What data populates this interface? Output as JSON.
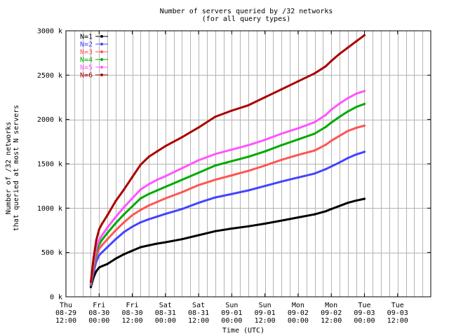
{
  "chart_data": {
    "type": "line",
    "title": "Number of servers queried by /32 networks",
    "subtitle": "(for all query types)",
    "xlabel": "Time (UTC)",
    "ylabel": [
      "Number of /32 networks",
      "that queried at most N servers"
    ],
    "x_unit": "hours since Thu 08-29 12:00 UTC",
    "xlim": [
      0,
      132
    ],
    "ylim": [
      0,
      3000
    ],
    "x_ticks": [
      {
        "x": 0,
        "lines": [
          "Thu",
          "08-29",
          "12:00"
        ]
      },
      {
        "x": 12,
        "lines": [
          "Fri",
          "08-30",
          "00:00"
        ]
      },
      {
        "x": 24,
        "lines": [
          "Fri",
          "08-30",
          "12:00"
        ]
      },
      {
        "x": 36,
        "lines": [
          "Sat",
          "08-31",
          "00:00"
        ]
      },
      {
        "x": 48,
        "lines": [
          "Sat",
          "08-31",
          "12:00"
        ]
      },
      {
        "x": 60,
        "lines": [
          "Sun",
          "09-01",
          "00:00"
        ]
      },
      {
        "x": 72,
        "lines": [
          "Sun",
          "09-01",
          "12:00"
        ]
      },
      {
        "x": 84,
        "lines": [
          "Mon",
          "09-02",
          "00:00"
        ]
      },
      {
        "x": 96,
        "lines": [
          "Mon",
          "09-02",
          "12:00"
        ]
      },
      {
        "x": 108,
        "lines": [
          "Tue",
          "09-03",
          "00:00"
        ]
      },
      {
        "x": 120,
        "lines": [
          "Tue",
          "09-03",
          "12:00"
        ]
      }
    ],
    "minor_x_step": 3,
    "y_ticks": [
      {
        "y": 0,
        "label": "0 k"
      },
      {
        "y": 500,
        "label": "500 k"
      },
      {
        "y": 1000,
        "label": "1000 k"
      },
      {
        "y": 1500,
        "label": "1500 k"
      },
      {
        "y": 2000,
        "label": "2000 k"
      },
      {
        "y": 2500,
        "label": "2500 k"
      },
      {
        "y": 3000,
        "label": "3000 k"
      }
    ],
    "grid": true,
    "legend_position": "top-left",
    "x": [
      9,
      10,
      11,
      12,
      13,
      15,
      18,
      21,
      24,
      27,
      30,
      33,
      36,
      42,
      48,
      54,
      60,
      66,
      72,
      78,
      84,
      90,
      94,
      96,
      99,
      102,
      105,
      108
    ],
    "series": [
      {
        "name": "N=1",
        "color": "#000000",
        "values": [
          110,
          220,
          290,
          330,
          345,
          370,
          430,
          480,
          520,
          560,
          580,
          600,
          615,
          650,
          695,
          740,
          770,
          795,
          825,
          860,
          895,
          930,
          965,
          990,
          1025,
          1060,
          1085,
          1105
        ]
      },
      {
        "name": "N=2",
        "color": "#4444ff",
        "values": [
          130,
          280,
          400,
          470,
          500,
          560,
          650,
          730,
          790,
          840,
          875,
          905,
          935,
          990,
          1060,
          1120,
          1160,
          1200,
          1250,
          1300,
          1345,
          1390,
          1440,
          1470,
          1515,
          1565,
          1605,
          1635
        ]
      },
      {
        "name": "N=3",
        "color": "#ff5555",
        "values": [
          140,
          320,
          460,
          540,
          580,
          650,
          750,
          840,
          920,
          980,
          1030,
          1070,
          1110,
          1180,
          1260,
          1320,
          1370,
          1420,
          1480,
          1545,
          1600,
          1650,
          1715,
          1760,
          1815,
          1870,
          1905,
          1930
        ]
      },
      {
        "name": "N=4",
        "color": "#00aa00",
        "values": [
          150,
          350,
          510,
          590,
          640,
          720,
          830,
          930,
          1020,
          1110,
          1160,
          1200,
          1240,
          1320,
          1400,
          1480,
          1530,
          1580,
          1640,
          1710,
          1775,
          1840,
          1915,
          1965,
          2030,
          2090,
          2140,
          2175
        ]
      },
      {
        "name": "N=5",
        "color": "#ff55ff",
        "values": [
          160,
          380,
          550,
          640,
          690,
          780,
          900,
          1010,
          1110,
          1210,
          1270,
          1320,
          1360,
          1450,
          1540,
          1610,
          1660,
          1710,
          1770,
          1840,
          1900,
          1970,
          2050,
          2110,
          2180,
          2240,
          2290,
          2320
        ]
      },
      {
        "name": "N=6",
        "color": "#aa0000",
        "values": [
          170,
          440,
          640,
          760,
          820,
          920,
          1080,
          1210,
          1350,
          1490,
          1580,
          1640,
          1700,
          1800,
          1910,
          2030,
          2100,
          2160,
          2250,
          2340,
          2430,
          2520,
          2600,
          2660,
          2740,
          2810,
          2880,
          2950
        ]
      }
    ]
  }
}
